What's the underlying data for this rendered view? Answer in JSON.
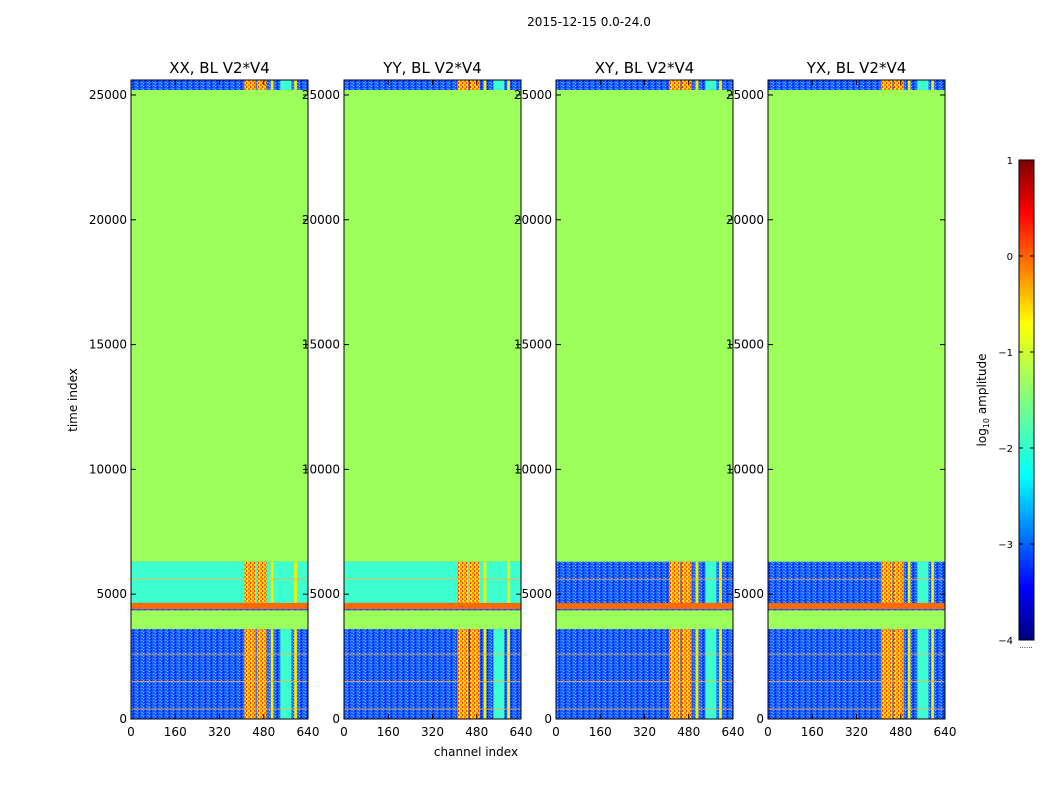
{
  "chart_data": {
    "type": "heatmap",
    "title": "2015-12-15 0.0-24.0",
    "xlabel": "channel index",
    "ylabel": "time index",
    "xlim": [
      0,
      640
    ],
    "ylim": [
      0,
      25600
    ],
    "xticks": [
      0,
      160,
      320,
      480,
      640
    ],
    "xtick_labels": [
      "0",
      "160",
      "320",
      "480",
      "640"
    ],
    "yticks": [
      0,
      5000,
      10000,
      15000,
      20000,
      25000
    ],
    "ytick_labels": [
      "0",
      "5000",
      "10000",
      "15000",
      "20000",
      "25000"
    ],
    "colorbar": {
      "label_prefix": "log",
      "label_sub": "10",
      "label_suffix": " amplitude",
      "range": [
        -4,
        1
      ],
      "ticks": [
        1,
        0,
        -1,
        -2,
        -3,
        -4
      ],
      "tick_labels": [
        "1",
        "0",
        "−1",
        "−2",
        "−3",
        "−4"
      ],
      "colormap": "jet",
      "under_marker": "......"
    },
    "panels": [
      {
        "title": "XX, BL V2*V4",
        "upper_region": "cyan"
      },
      {
        "title": "YY, BL V2*V4",
        "upper_region": "cyan"
      },
      {
        "title": "XY, BL V2*V4",
        "upper_region": "blue"
      },
      {
        "title": "YX, BL V2*V4",
        "upper_region": "blue"
      }
    ],
    "regions": {
      "flagged_fill_value": -1.2,
      "flagged_time_ranges": [
        [
          3600,
          4350
        ],
        [
          6300,
          25200
        ]
      ],
      "high_amplitude_band": [
        4400,
        4650
      ],
      "bright_channel_range": [
        410,
        600
      ]
    }
  },
  "colors": {
    "flagged": "#9cff5a",
    "band": "#ff6a00",
    "cyan": "#3dffd0",
    "blue": "#1450ff",
    "bright": "#f5f000",
    "hot": "#ff4a00"
  }
}
